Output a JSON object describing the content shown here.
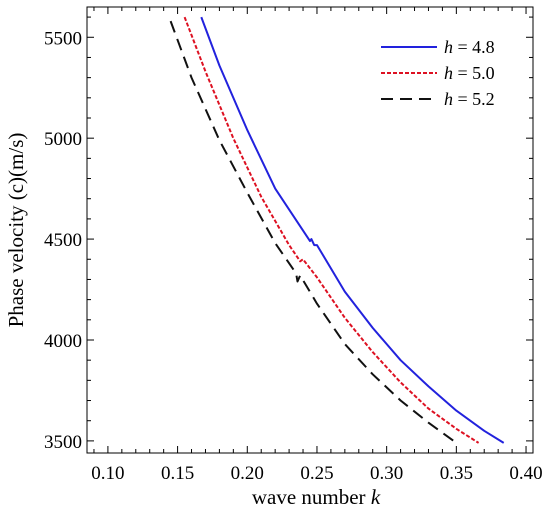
{
  "chart_data": {
    "type": "line",
    "title": "",
    "xlabel": "wave number",
    "xlabel_var": "k",
    "ylabel": "Phase velocity (c)(m/s)",
    "xlim": [
      0.085,
      0.405
    ],
    "ylim": [
      3440,
      5650
    ],
    "x_ticks": [
      0.1,
      0.15,
      0.2,
      0.25,
      0.3,
      0.35,
      0.4
    ],
    "x_tick_labels": [
      "0.10",
      "0.15",
      "0.20",
      "0.25",
      "0.30",
      "0.35",
      "0.40"
    ],
    "y_ticks": [
      3500,
      4000,
      4500,
      5000,
      5500
    ],
    "y_tick_labels": [
      "3500",
      "4000",
      "4500",
      "5000",
      "5500"
    ],
    "grid": false,
    "legend_position": "top-right",
    "series": [
      {
        "name": "h = 4.8",
        "var": "h",
        "value": "4.8",
        "color": "#2222dd",
        "style": "solid",
        "x": [
          0.167,
          0.18,
          0.2,
          0.22,
          0.245,
          0.246,
          0.248,
          0.25,
          0.27,
          0.29,
          0.31,
          0.33,
          0.35,
          0.37,
          0.384
        ],
        "y": [
          5600,
          5360,
          5040,
          4750,
          4490,
          4500,
          4470,
          4470,
          4240,
          4060,
          3900,
          3770,
          3650,
          3550,
          3490
        ]
      },
      {
        "name": "h = 5.0",
        "var": "h",
        "value": "5.0",
        "color": "#dd1122",
        "style": "dashed",
        "x": [
          0.155,
          0.17,
          0.19,
          0.21,
          0.23,
          0.238,
          0.24,
          0.25,
          0.27,
          0.29,
          0.31,
          0.33,
          0.35,
          0.366
        ],
        "y": [
          5600,
          5330,
          5000,
          4710,
          4470,
          4390,
          4400,
          4310,
          4110,
          3940,
          3790,
          3660,
          3560,
          3490
        ]
      },
      {
        "name": "h = 5.2",
        "var": "h",
        "value": "5.2",
        "color": "#111111",
        "style": "longdash",
        "x": [
          0.145,
          0.16,
          0.18,
          0.2,
          0.22,
          0.235,
          0.236,
          0.238,
          0.25,
          0.27,
          0.29,
          0.31,
          0.33,
          0.348
        ],
        "y": [
          5580,
          5300,
          4990,
          4730,
          4480,
          4330,
          4290,
          4320,
          4180,
          3980,
          3830,
          3700,
          3590,
          3500
        ]
      }
    ]
  }
}
